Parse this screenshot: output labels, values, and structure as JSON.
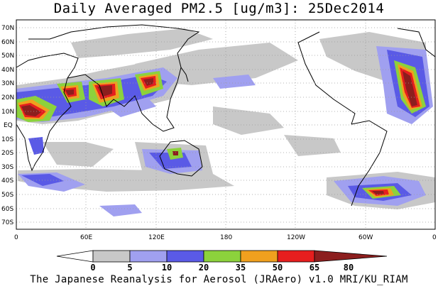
{
  "title": "Daily Averaged PM2.5 [ug/m3]: 25Dec2014",
  "footer": "The Japanese Reanalysis for Aerosol (JRAero) v1.0 MRI/KU_RIAM",
  "lat_labels": [
    "70N",
    "60N",
    "50N",
    "40N",
    "30N",
    "20N",
    "10N",
    "EQ",
    "10S",
    "20S",
    "30S",
    "40S",
    "50S",
    "60S",
    "70S"
  ],
  "lon_labels": [
    "0",
    "60E",
    "120E",
    "180",
    "120W",
    "60W",
    "0"
  ],
  "colorbar": {
    "ticks": [
      "0",
      "5",
      "10",
      "20",
      "35",
      "50",
      "65",
      "80"
    ],
    "colors": [
      "#ffffff",
      "#c8c8c8",
      "#a0a0f0",
      "#5a5ae6",
      "#8cd23c",
      "#f0a01e",
      "#e61e1e",
      "#8c1e1e"
    ]
  },
  "legend_levels": [
    "0-5",
    "5-10",
    "10-20",
    "20-35",
    "35-50",
    "50-65",
    "65-80",
    ">80"
  ]
}
